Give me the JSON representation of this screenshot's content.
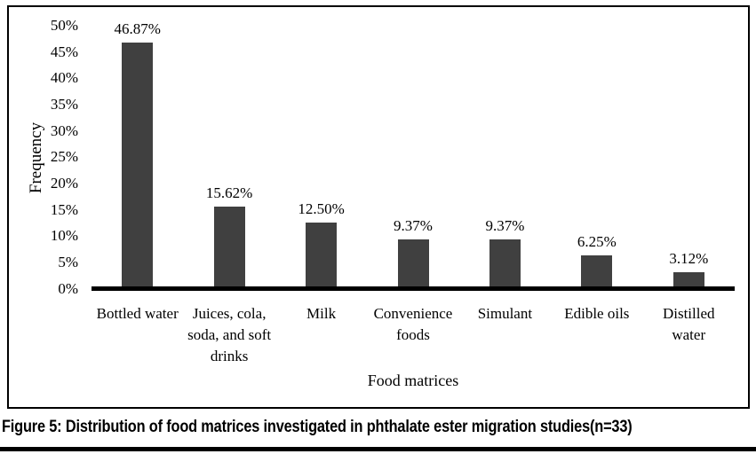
{
  "figure": {
    "caption": "Figure 5: Distribution of food matrices investigated in phthalate ester migration studies(n=33)"
  },
  "chart_data": {
    "type": "bar",
    "title": "",
    "xlabel": "Food matrices",
    "ylabel": "Frequency",
    "ylim": [
      0,
      50
    ],
    "ytick_step": 5,
    "yticks": [
      "50%",
      "45%",
      "40%",
      "35%",
      "30%",
      "25%",
      "20%",
      "15%",
      "10%",
      "5%",
      "0%"
    ],
    "categories": [
      "Bottled water",
      "Juices, cola, soda, and soft drinks",
      "Milk",
      "Convenience foods",
      "Simulant",
      "Edible oils",
      "Distilled water"
    ],
    "values": [
      46.87,
      15.62,
      12.5,
      9.37,
      9.37,
      6.25,
      3.12
    ],
    "value_labels": [
      "46.87%",
      "15.62%",
      "12.50%",
      "9.37%",
      "9.37%",
      "6.25%",
      "3.12%"
    ],
    "bar_color": "#404040",
    "grid": false,
    "legend": false
  }
}
